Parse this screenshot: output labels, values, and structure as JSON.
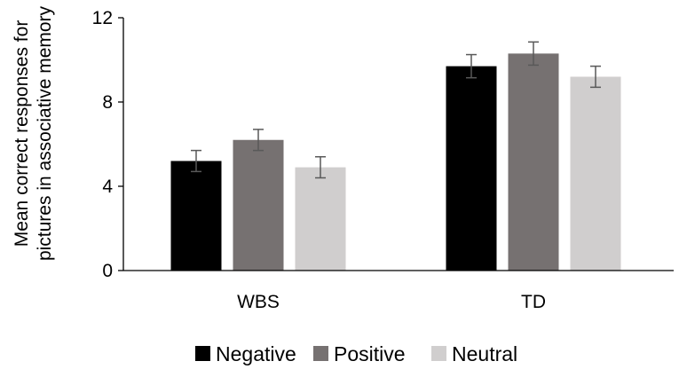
{
  "chart_data": {
    "type": "bar",
    "title": "",
    "xlabel": "",
    "ylabel": [
      "Mean correct responses for",
      "pictures in associative memory"
    ],
    "categories": [
      "WBS",
      "TD"
    ],
    "series": [
      {
        "name": "Negative",
        "color": "#000000",
        "values": [
          5.2,
          9.7
        ],
        "errors": [
          0.5,
          0.55
        ]
      },
      {
        "name": "Positive",
        "color": "#767171",
        "values": [
          6.2,
          10.3
        ],
        "errors": [
          0.5,
          0.55
        ]
      },
      {
        "name": "Neutral",
        "color": "#d0cece",
        "values": [
          4.9,
          9.2
        ],
        "errors": [
          0.5,
          0.5
        ]
      }
    ],
    "ylim": [
      0,
      12
    ],
    "yticks": [
      0,
      4,
      8,
      12
    ],
    "grid": false,
    "legend_position": "bottom"
  }
}
